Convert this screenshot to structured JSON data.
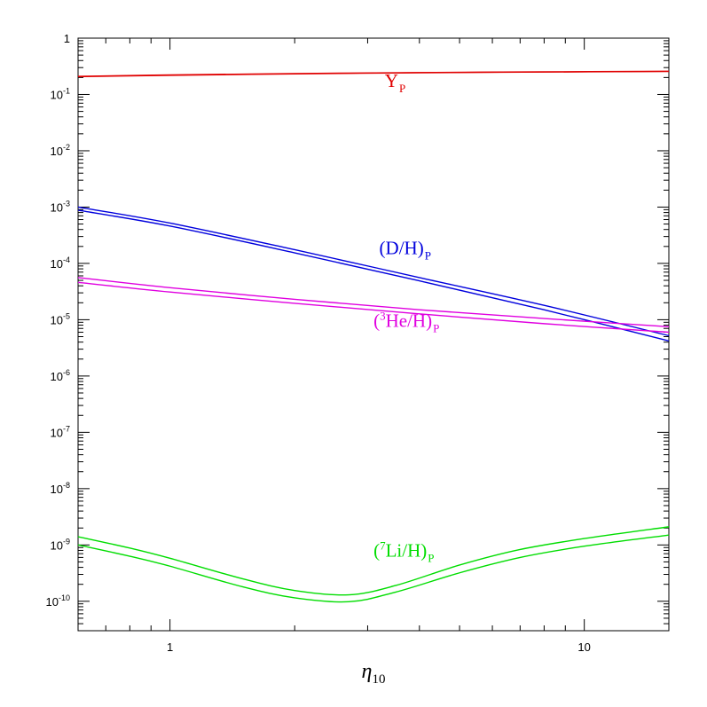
{
  "chart_data": {
    "type": "line",
    "xscale": "log",
    "yscale": "log",
    "xlim": [
      0.6,
      16
    ],
    "ylim": [
      3e-11,
      1
    ],
    "xlabel": {
      "symbol": "η",
      "subscript": "10"
    },
    "xticklabels": [
      {
        "value": 1,
        "label": "1"
      },
      {
        "value": 10,
        "label": "10"
      }
    ],
    "yticklabels": [
      {
        "value": 1,
        "base": "1",
        "exp": ""
      },
      {
        "value": 0.1,
        "base": "10",
        "exp": "-1"
      },
      {
        "value": 0.01,
        "base": "10",
        "exp": "-2"
      },
      {
        "value": 0.001,
        "base": "10",
        "exp": "-3"
      },
      {
        "value": 0.0001,
        "base": "10",
        "exp": "-4"
      },
      {
        "value": 1e-05,
        "base": "10",
        "exp": "-5"
      },
      {
        "value": 1e-06,
        "base": "10",
        "exp": "-6"
      },
      {
        "value": 1e-07,
        "base": "10",
        "exp": "-7"
      },
      {
        "value": 1e-08,
        "base": "10",
        "exp": "-8"
      },
      {
        "value": 1e-09,
        "base": "10",
        "exp": "-9"
      },
      {
        "value": 1e-10,
        "base": "10",
        "exp": "-10"
      }
    ],
    "series": [
      {
        "key": "yp",
        "color": "#e00000",
        "label": {
          "pre": "Y",
          "sup": "",
          "main": "",
          "sub": "P"
        },
        "label_at": [
          3.3,
          0.135
        ],
        "curves": [
          {
            "x": [
              0.6,
              1,
              2,
              4,
              8,
              16
            ],
            "y": [
              0.21,
              0.222,
              0.235,
              0.245,
              0.252,
              0.258
            ]
          },
          {
            "x": [
              0.6,
              1,
              2,
              4,
              8,
              16
            ],
            "y": [
              0.207,
              0.219,
              0.232,
              0.243,
              0.25,
              0.256
            ]
          }
        ]
      },
      {
        "key": "dh",
        "color": "#0000dd",
        "label": {
          "pre": "(D/H)",
          "sup": "",
          "main": "",
          "sub": "P"
        },
        "label_at": [
          3.2,
          0.000145
        ],
        "curves": [
          {
            "x": [
              0.6,
              1,
              2,
              4,
              8,
              16
            ],
            "y": [
              0.001,
              0.00052,
              0.000175,
              5.6e-05,
              1.8e-05,
              5.2e-06
            ]
          },
          {
            "x": [
              0.6,
              1,
              2,
              4,
              8,
              16
            ],
            "y": [
              0.00088,
              0.00046,
              0.000154,
              4.9e-05,
              1.5e-05,
              4.2e-06
            ]
          }
        ]
      },
      {
        "key": "he3",
        "color": "#e000e0",
        "label": {
          "pre": "(",
          "sup": "3",
          "main": "He/H)",
          "sub": "P"
        },
        "label_at": [
          3.1,
          7.5e-06
        ],
        "curves": [
          {
            "x": [
              0.6,
              1,
              2,
              4,
              8,
              16
            ],
            "y": [
              5.6e-05,
              3.7e-05,
              2.3e-05,
              1.5e-05,
              1.05e-05,
              7.5e-06
            ]
          },
          {
            "x": [
              0.6,
              1,
              2,
              4,
              8,
              16
            ],
            "y": [
              4.6e-05,
              3.1e-05,
              1.95e-05,
              1.27e-05,
              8.5e-06,
              6e-06
            ]
          }
        ]
      },
      {
        "key": "li7",
        "color": "#00dd00",
        "label": {
          "pre": "(",
          "sup": "7",
          "main": "Li/H)",
          "sub": "P"
        },
        "label_at": [
          3.1,
          6.2e-10
        ],
        "curves": [
          {
            "x": [
              0.6,
              0.8,
              1,
              1.5,
              2,
              2.7,
              3.5,
              5,
              7,
              10,
              16
            ],
            "y": [
              1.4e-09,
              8.8e-10,
              5.8e-10,
              2.5e-10,
              1.55e-10,
              1.3e-10,
              1.9e-10,
              4.4e-10,
              8.3e-10,
              1.3e-09,
              2.1e-09
            ]
          },
          {
            "x": [
              0.6,
              0.8,
              1,
              1.5,
              2,
              2.7,
              3.5,
              5,
              7,
              10,
              16
            ],
            "y": [
              1e-09,
              6.3e-10,
              4.2e-10,
              1.8e-10,
              1.15e-10,
              9.8e-11,
              1.45e-10,
              3.2e-10,
              6e-10,
              9.5e-10,
              1.5e-09
            ]
          }
        ]
      }
    ]
  }
}
